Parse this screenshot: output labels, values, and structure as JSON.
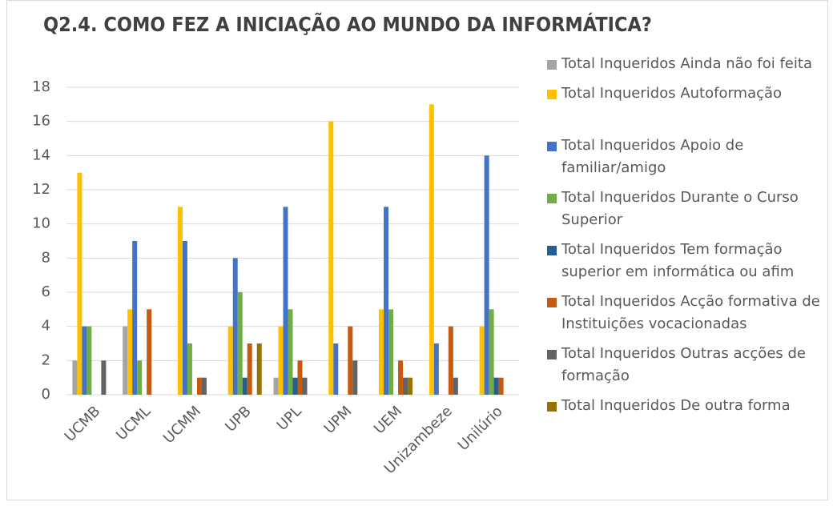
{
  "chart_data": {
    "type": "bar",
    "title": "Q2.4. COMO FEZ A INICIAÇÃO AO MUNDO DA INFORMÁTICA?",
    "categories": [
      "UCMB",
      "UCML",
      "UCMM",
      "UPB",
      "UPL",
      "UPM",
      "UEM",
      "Unizambeze",
      "Unilúrio"
    ],
    "series": [
      {
        "name": "Total Inqueridos Ainda não foi feita",
        "color": "#a5a5a5",
        "values": [
          2,
          4,
          0,
          0,
          1,
          0,
          0,
          0,
          0
        ]
      },
      {
        "name": "Total Inqueridos Autoformação",
        "color": "#ffc000",
        "values": [
          13,
          5,
          11,
          4,
          4,
          16,
          5,
          17,
          4
        ]
      },
      {
        "name": "Total Inqueridos Apoio de familiar/amigo",
        "color": "#4472c4",
        "values": [
          4,
          9,
          9,
          8,
          11,
          3,
          11,
          3,
          14
        ]
      },
      {
        "name": "Total Inqueridos Durante o Curso Superior",
        "color": "#70ad47",
        "values": [
          4,
          2,
          3,
          6,
          5,
          0,
          5,
          0,
          5
        ]
      },
      {
        "name": "Total Inqueridos Tem formação superior em informática ou afim",
        "color": "#255e91",
        "values": [
          0,
          0,
          0,
          1,
          1,
          0,
          0,
          0,
          1
        ]
      },
      {
        "name": "Total Inqueridos Acção formativa de Instituições vocacionadas",
        "color": "#c55a11",
        "values": [
          0,
          5,
          1,
          3,
          2,
          4,
          2,
          4,
          1
        ]
      },
      {
        "name": "Total Inqueridos Outras acções de formação",
        "color": "#636363",
        "values": [
          2,
          0,
          1,
          0,
          1,
          2,
          1,
          1,
          0
        ]
      },
      {
        "name": "Total Inqueridos De outra forma",
        "color": "#997300",
        "values": [
          0,
          0,
          0,
          3,
          0,
          0,
          1,
          0,
          0
        ]
      }
    ],
    "ylim": [
      0,
      18
    ],
    "yticks": [
      0,
      2,
      4,
      6,
      8,
      10,
      12,
      14,
      16,
      18
    ],
    "grid": true
  }
}
